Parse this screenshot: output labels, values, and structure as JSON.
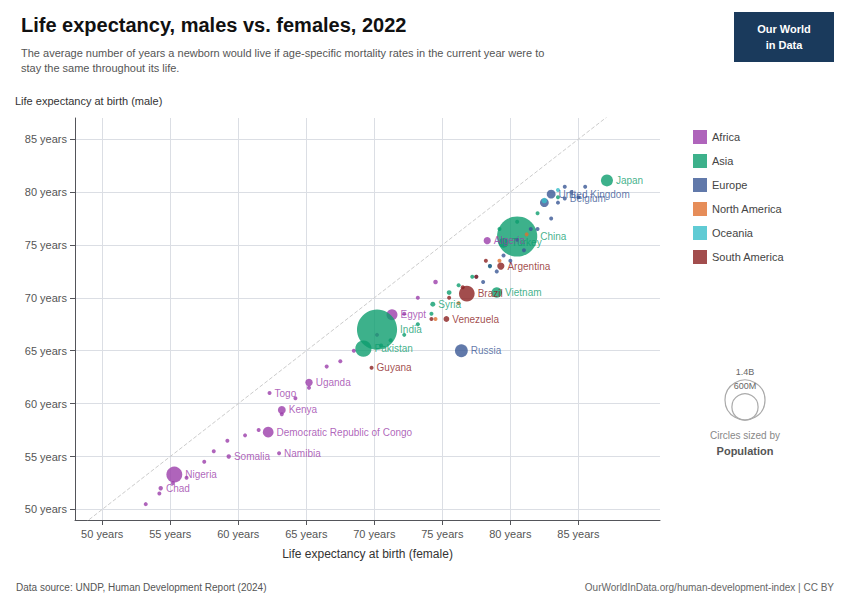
{
  "chart_data": {
    "type": "scatter",
    "title": "Life expectancy, males vs. females, 2022",
    "subtitle": "The average number of years a newborn would live if age-specific mortality rates in the current year were to\nstay the same throughout its life.",
    "xlabel": "Life expectancy at birth (female)",
    "ylabel": "Life expectancy at birth (male)",
    "source": "Data source: UNDP, Human Development Report (2024)",
    "credit": "OurWorldInData.org/human-development-index | CC BY",
    "logo": {
      "lines": [
        "Our World",
        "in Data"
      ],
      "color": "#1a3a5c"
    },
    "xlim": [
      48,
      91
    ],
    "ylim": [
      49,
      87
    ],
    "xticks": [
      {
        "value": 50,
        "label": "50 years"
      },
      {
        "value": 55,
        "label": "55 years"
      },
      {
        "value": 60,
        "label": "60 years"
      },
      {
        "value": 65,
        "label": "65 years"
      },
      {
        "value": 70,
        "label": "70 years"
      },
      {
        "value": 75,
        "label": "75 years"
      },
      {
        "value": 80,
        "label": "80 years"
      },
      {
        "value": 85,
        "label": "85 years"
      }
    ],
    "yticks": [
      {
        "value": 50,
        "label": "50 years"
      },
      {
        "value": 55,
        "label": "55 years"
      },
      {
        "value": 60,
        "label": "60 years"
      },
      {
        "value": 65,
        "label": "65 years"
      },
      {
        "value": 70,
        "label": "70 years"
      },
      {
        "value": 75,
        "label": "75 years"
      },
      {
        "value": 80,
        "label": "80 years"
      },
      {
        "value": 85,
        "label": "85 years"
      }
    ],
    "grid": true,
    "legend": "right",
    "reference_line": {
      "x": [
        48,
        91
      ],
      "values": [
        48,
        91
      ],
      "line_style": "dashed"
    },
    "series": [
      {
        "name": "Africa",
        "color": "#9b3daa",
        "x": [
          78.3,
          71.3,
          65.2,
          62.3,
          63.2,
          62.2,
          63.0,
          59.3,
          55.3,
          54.3,
          74.5,
          73.2,
          72.2,
          70.2,
          68.5,
          67.5,
          66.5,
          65.2,
          64.2,
          63.2,
          61.5,
          60.5,
          59.2,
          58.2,
          57.5,
          56.2,
          55.2,
          54.2,
          53.2
        ],
        "values": [
          75.4,
          68.4,
          62.0,
          61.0,
          59.4,
          57.3,
          55.3,
          55.0,
          53.3,
          52.0,
          71.5,
          70.0,
          68.5,
          66.5,
          65.0,
          64.0,
          63.5,
          61.5,
          60.5,
          59.0,
          57.5,
          57.0,
          56.5,
          55.5,
          54.5,
          53.0,
          52.5,
          51.5,
          50.5
        ],
        "sizes": [
          45,
          105,
          48,
          8,
          54,
          99,
          2.6,
          17,
          220,
          17,
          18,
          12,
          10,
          8,
          15,
          6,
          9,
          7,
          5,
          4,
          6,
          3,
          8,
          5,
          4,
          10,
          6,
          3,
          4
        ],
        "labels": [
          "Algeria",
          "Egypt",
          "Uganda",
          "Togo",
          "Kenya",
          "Democratic Republic of Congo",
          "Namibia",
          "Somalia",
          "Nigeria",
          "Chad",
          null,
          null,
          null,
          null,
          null,
          null,
          null,
          null,
          null,
          null,
          null,
          null,
          null,
          null,
          null,
          null,
          null,
          null,
          null
        ]
      },
      {
        "name": "Asia",
        "color": "#0d9e6e",
        "x": [
          87.1,
          80.5,
          79.5,
          79.0,
          74.3,
          70.2,
          69.2,
          83.5,
          82.0,
          80.5,
          79.2,
          78.5,
          77.2,
          76.2,
          75.5,
          74.2,
          73.2,
          72.2,
          71.2,
          70.5
        ],
        "values": [
          81.1,
          75.8,
          75.2,
          70.5,
          69.4,
          67.0,
          65.2,
          79.5,
          78.0,
          77.2,
          76.5,
          73.0,
          72.0,
          71.2,
          70.5,
          68.5,
          67.5,
          66.5,
          66.0,
          65.5
        ],
        "sizes": [
          125,
          1412,
          85,
          97,
          22,
          1406,
          231,
          8,
          7,
          12,
          10,
          15,
          9,
          11,
          20,
          8,
          5,
          4,
          3,
          6
        ],
        "labels": [
          "Japan",
          "China",
          "Turkey",
          "Vietnam",
          "Syria",
          "India",
          "Pakistan",
          null,
          null,
          null,
          null,
          null,
          null,
          null,
          null,
          null,
          null,
          null,
          null,
          null
        ]
      },
      {
        "name": "Europe",
        "color": "#3a5795",
        "x": [
          84.0,
          83.0,
          76.4,
          84.5,
          85.0,
          85.5,
          83.5,
          84.0,
          82.5,
          83.0,
          82.0,
          81.5,
          80.5,
          81.0,
          79.5,
          80.0,
          78.5,
          77.5,
          79.0,
          78.0
        ],
        "values": [
          79.4,
          79.8,
          65.0,
          80.0,
          79.5,
          80.5,
          79.0,
          80.5,
          79.0,
          77.5,
          76.5,
          76.5,
          75.5,
          74.5,
          74.0,
          73.5,
          73.0,
          72.0,
          72.5,
          71.5
        ],
        "sizes": [
          11,
          68,
          143,
          5,
          4,
          6,
          5,
          3,
          67,
          5,
          10,
          4,
          8,
          9,
          6,
          10,
          5,
          4,
          7,
          5
        ],
        "labels": [
          "Belgium",
          "United Kingdom",
          "Russia",
          null,
          null,
          null,
          null,
          null,
          null,
          null,
          null,
          null,
          null,
          null,
          null,
          null,
          null,
          null,
          null,
          null
        ]
      },
      {
        "name": "North America",
        "color": "#e07030",
        "x": [
          81.2,
          79.2,
          76.2,
          74.5
        ],
        "values": [
          76.0,
          73.5,
          69.5,
          68.0
        ],
        "sizes": [
          4,
          5,
          6,
          4
        ],
        "labels": [
          null,
          null,
          null,
          null
        ]
      },
      {
        "name": "Oceania",
        "color": "#38bec9",
        "x": [
          83.5,
          82.5
        ],
        "values": [
          80.2,
          79.2
        ],
        "sizes": [
          3,
          26
        ],
        "labels": [
          null,
          null
        ]
      },
      {
        "name": "South America",
        "color": "#8b2020",
        "x": [
          79.3,
          76.8,
          75.3,
          69.8,
          78.2,
          77.5,
          76.5,
          75.5,
          74.2
        ],
        "values": [
          73.0,
          70.4,
          68.0,
          63.4,
          73.5,
          72.0,
          71.0,
          70.0,
          68.0
        ],
        "sizes": [
          46,
          215,
          29,
          0.8,
          7,
          5,
          4,
          6,
          3
        ],
        "labels": [
          "Argentina",
          "Brazil",
          "Venezuela",
          "Guyana",
          null,
          null,
          null,
          null,
          null
        ]
      }
    ],
    "size_legend": {
      "title": "Circles sized by",
      "label": "Population",
      "sizes": [
        1400,
        600
      ],
      "size_labels": [
        "1.4B",
        "600M"
      ]
    }
  }
}
